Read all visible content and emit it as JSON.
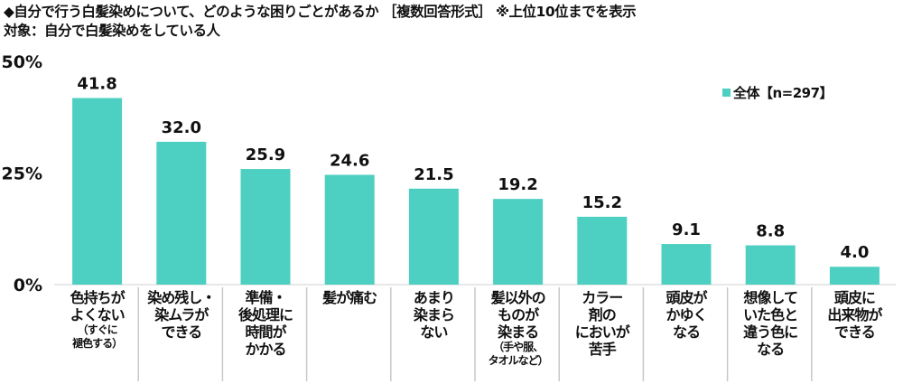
{
  "title": "◆自分で行う白髪染めについて、どのような困りごとがあるか ［複数回答形式］ ※上位10位までを表示",
  "subtitle": "対象：自分で白髪染めをしている人",
  "chart_data": {
    "type": "bar",
    "categories": [
      {
        "lines": [
          "色持ちが",
          "よくない"
        ],
        "note": [
          "（すぐに",
          "褪色する）"
        ]
      },
      {
        "lines": [
          "染め残し・",
          "染ムラが",
          "できる"
        ],
        "note": []
      },
      {
        "lines": [
          "準備・",
          "後処理に",
          "時間が",
          "かかる"
        ],
        "note": []
      },
      {
        "lines": [
          "髪が痛む"
        ],
        "note": []
      },
      {
        "lines": [
          "あまり",
          "染まら",
          "ない"
        ],
        "note": []
      },
      {
        "lines": [
          "髪以外の",
          "ものが",
          "染まる"
        ],
        "note": [
          "（手や服、",
          "タオルなど）"
        ]
      },
      {
        "lines": [
          "カラー",
          "剤の",
          "においが",
          "苦手"
        ],
        "note": []
      },
      {
        "lines": [
          "頭皮が",
          "かゆく",
          "なる"
        ],
        "note": []
      },
      {
        "lines": [
          "想像して",
          "いた色と",
          "違う色に",
          "なる"
        ],
        "note": []
      },
      {
        "lines": [
          "頭皮に",
          "出来物が",
          "できる"
        ],
        "note": []
      }
    ],
    "series": [
      {
        "name": "全体【n=297】",
        "color": "#4dd0c1",
        "values": [
          41.8,
          32.0,
          25.9,
          24.6,
          21.5,
          19.2,
          15.2,
          9.1,
          8.8,
          4.0
        ]
      }
    ],
    "value_labels": [
      "41.8",
      "32.0",
      "25.9",
      "24.6",
      "21.5",
      "19.2",
      "15.2",
      "9.1",
      "8.8",
      "4.0"
    ],
    "ylim": [
      0,
      50
    ],
    "yticks": [
      "0%",
      "25%",
      "50%"
    ],
    "ytick_values": [
      0,
      25,
      50
    ],
    "legend_position": "top-right",
    "grid": false
  }
}
